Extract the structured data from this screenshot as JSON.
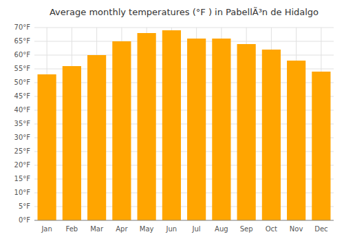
{
  "chart_data": {
    "type": "bar",
    "title": "Average monthly temperatures (°F ) in PabellÃ³n de Hidalgo",
    "categories": [
      "Jan",
      "Feb",
      "Mar",
      "Apr",
      "May",
      "Jun",
      "Jul",
      "Aug",
      "Sep",
      "Oct",
      "Nov",
      "Dec"
    ],
    "values": [
      53,
      56,
      60,
      65,
      68,
      69,
      66,
      66,
      64,
      62,
      58,
      54
    ],
    "color": "#FFA500",
    "ylim": [
      0,
      70
    ],
    "yticks": [
      {
        "value": 0,
        "label": "0°F"
      },
      {
        "value": 5,
        "label": "5°F"
      },
      {
        "value": 10,
        "label": "10°F"
      },
      {
        "value": 15,
        "label": "15°F"
      },
      {
        "value": 20,
        "label": "20°F"
      },
      {
        "value": 25,
        "label": "25°F"
      },
      {
        "value": 30,
        "label": "30°F"
      },
      {
        "value": 35,
        "label": "35°F"
      },
      {
        "value": 40,
        "label": "40°F"
      },
      {
        "value": 45,
        "label": "45°F"
      },
      {
        "value": 50,
        "label": "50°F"
      },
      {
        "value": 55,
        "label": "55°F"
      },
      {
        "value": 60,
        "label": "60°F"
      },
      {
        "value": 65,
        "label": "65°F"
      },
      {
        "value": 70,
        "label": "70°F"
      }
    ],
    "grid": true
  }
}
